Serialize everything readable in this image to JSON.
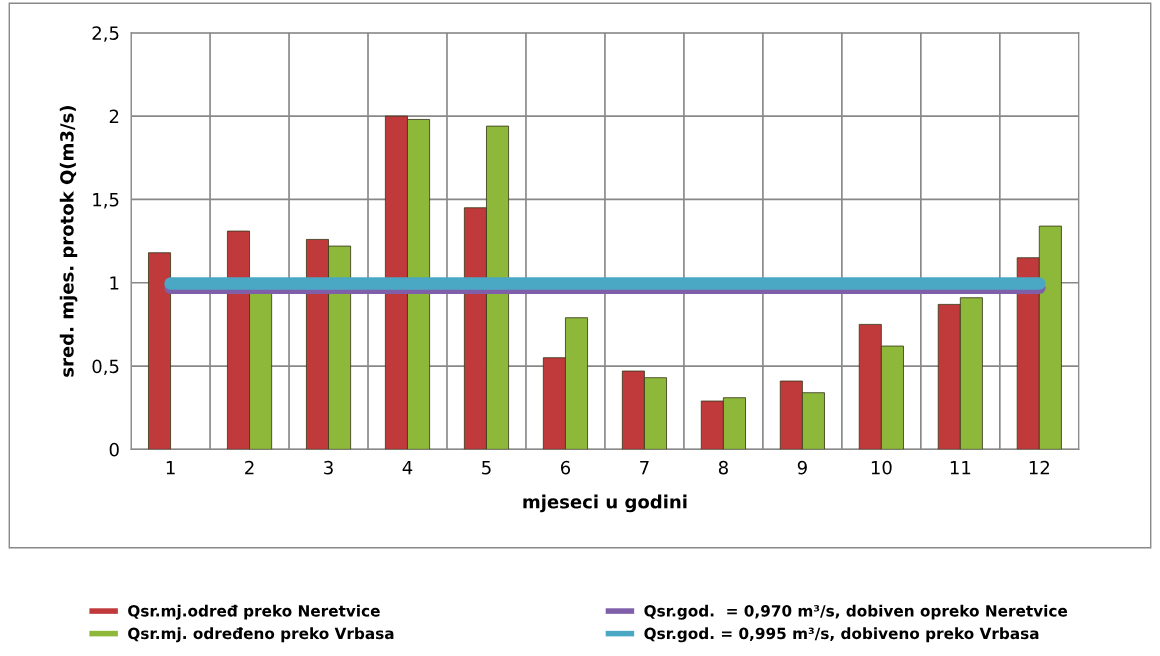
{
  "chart_data": {
    "type": "bar",
    "xlabel": "mjeseci u godini",
    "ylabel": "sred. mjes. protok Q(m3/s)",
    "categories": [
      "1",
      "2",
      "3",
      "4",
      "5",
      "6",
      "7",
      "8",
      "9",
      "10",
      "11",
      "12"
    ],
    "series": [
      {
        "name": "Qsr.mj.određ preko Neretvice",
        "color": "#c0393b",
        "values": [
          1.18,
          1.31,
          1.26,
          2.0,
          1.45,
          0.55,
          0.47,
          0.29,
          0.41,
          0.75,
          0.87,
          1.15
        ]
      },
      {
        "name": "Qsr.mj. određeno preko Vrbasa",
        "color": "#8db83a",
        "values": [
          null,
          0.94,
          1.22,
          1.98,
          1.94,
          0.79,
          0.43,
          0.31,
          0.34,
          0.62,
          0.91,
          1.34
        ]
      },
      {
        "name": "Qsr.god.  = 0,970 m³/s, dobiven opreko Neretvice",
        "color": "#7f5fa8",
        "type": "line",
        "values": [
          0.97,
          0.97,
          0.97,
          0.97,
          0.97,
          0.97,
          0.97,
          0.97,
          0.97,
          0.97,
          0.97,
          0.97
        ]
      },
      {
        "name": "Qsr.god. = 0,995 m³/s, dobiveno preko Vrbasa",
        "color": "#4aa8c5",
        "type": "line",
        "values": [
          0.995,
          0.995,
          0.995,
          0.995,
          0.995,
          0.995,
          0.995,
          0.995,
          0.995,
          0.995,
          0.995,
          0.995
        ]
      }
    ],
    "ylim": [
      0,
      2.5
    ],
    "yticks": [
      {
        "value": 0,
        "label": "0"
      },
      {
        "value": 0.5,
        "label": "0,5"
      },
      {
        "value": 1,
        "label": "1"
      },
      {
        "value": 1.5,
        "label": "1,5"
      },
      {
        "value": 2,
        "label": "2"
      },
      {
        "value": 2.5,
        "label": "2,5"
      }
    ],
    "grid": true,
    "legend": "bottom"
  }
}
